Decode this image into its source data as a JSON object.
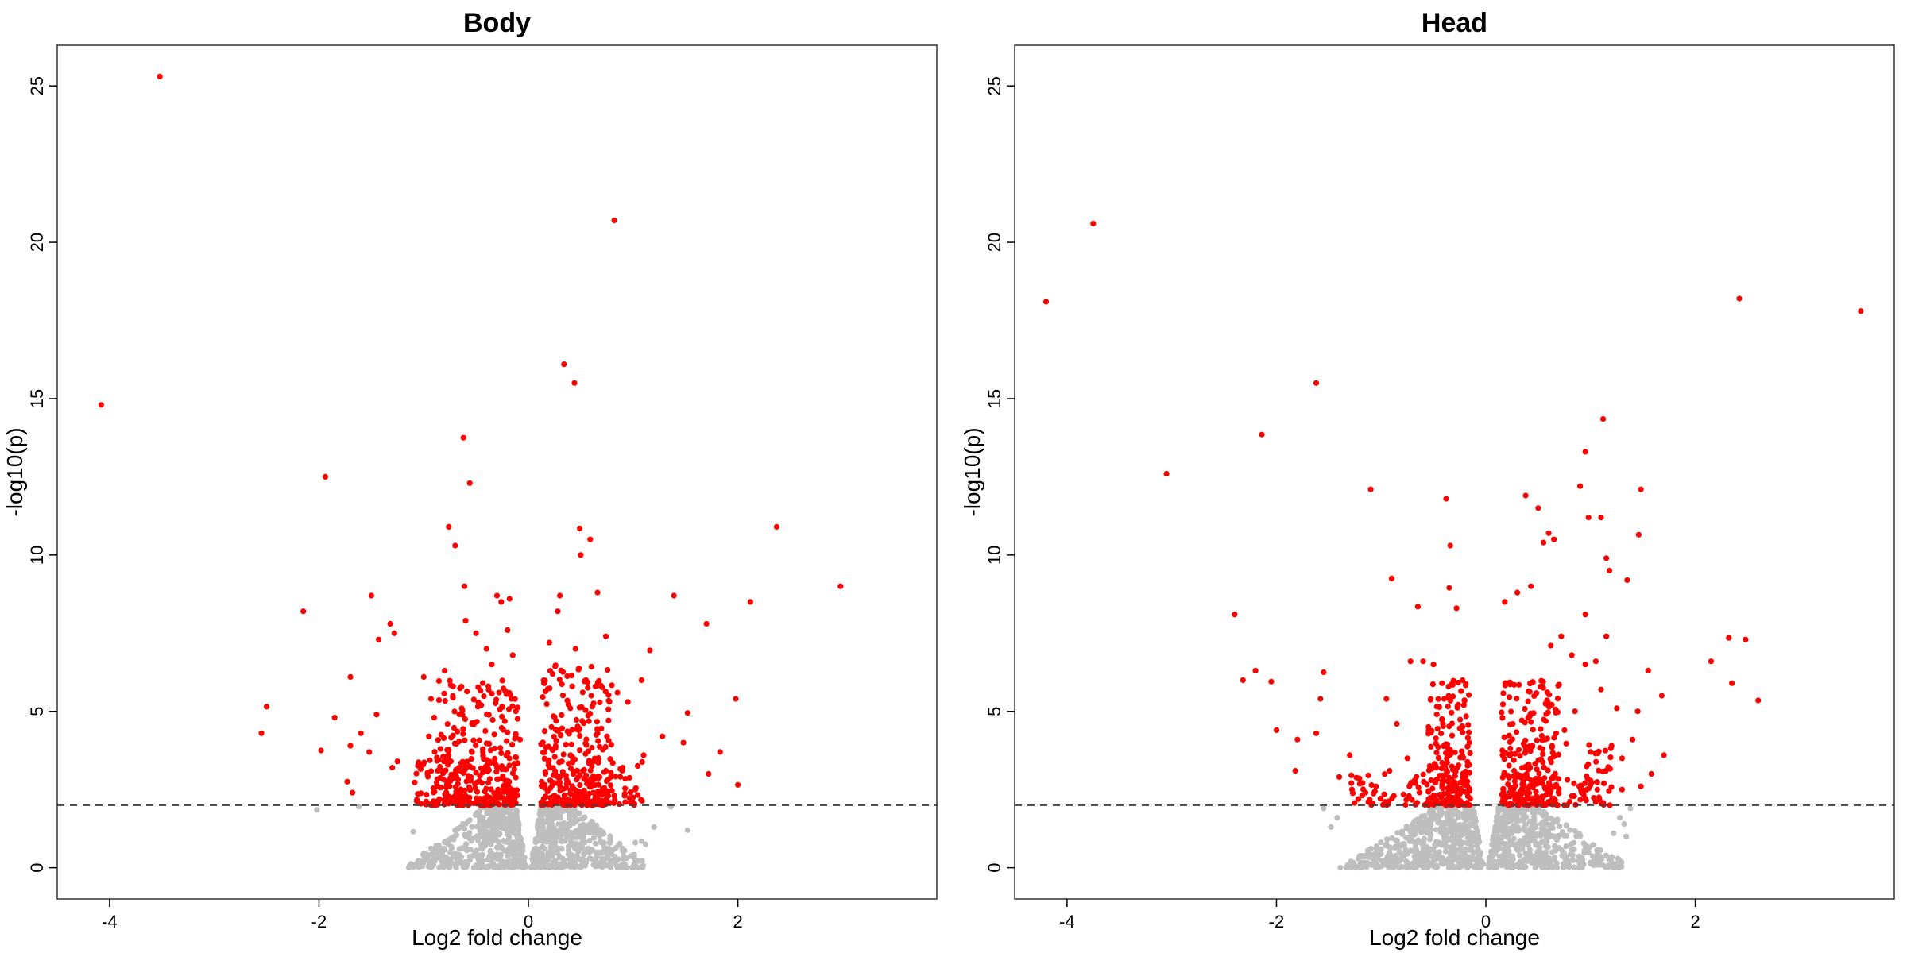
{
  "colors": {
    "significant": "#ff0000",
    "non_significant": "#bebebe",
    "threshold": "#444444",
    "frame": "#333333"
  },
  "chart_data": [
    {
      "type": "scatter",
      "title": "Body",
      "xlabel": "Log2 fold change",
      "ylabel": "-log10(p)",
      "xlim": [
        -4.5,
        3.9
      ],
      "ylim": [
        -1.0,
        26.3
      ],
      "xticks": [
        -4,
        -2,
        0,
        2
      ],
      "xtick_labels": [
        "-4",
        "-2",
        "0",
        "2"
      ],
      "yticks": [
        0,
        5,
        10,
        15,
        20,
        25
      ],
      "ytick_labels": [
        "0",
        "5",
        "10",
        "15",
        "20",
        "25"
      ],
      "threshold": 2,
      "grid": false,
      "significant_points": [
        [
          -3.52,
          25.3
        ],
        [
          -4.08,
          14.8
        ],
        [
          0.82,
          20.7
        ],
        [
          0.34,
          16.1
        ],
        [
          0.44,
          15.5
        ],
        [
          -0.62,
          13.75
        ],
        [
          -1.94,
          12.5
        ],
        [
          -0.56,
          12.3
        ],
        [
          -0.76,
          10.9
        ],
        [
          -0.7,
          10.3
        ],
        [
          0.49,
          10.85
        ],
        [
          0.59,
          10.5
        ],
        [
          0.5,
          10.0
        ],
        [
          2.37,
          10.9
        ],
        [
          2.98,
          9.0
        ],
        [
          -0.61,
          9.0
        ],
        [
          -0.3,
          8.7
        ],
        [
          -0.18,
          8.6
        ],
        [
          -0.26,
          8.5
        ],
        [
          -1.5,
          8.7
        ],
        [
          -2.15,
          8.2
        ],
        [
          1.39,
          8.7
        ],
        [
          2.12,
          8.5
        ],
        [
          1.7,
          7.8
        ],
        [
          0.3,
          8.7
        ],
        [
          0.66,
          8.8
        ],
        [
          0.28,
          8.2
        ],
        [
          0.74,
          7.4
        ],
        [
          -1.32,
          7.8
        ],
        [
          -1.28,
          7.5
        ],
        [
          -1.43,
          7.3
        ],
        [
          1.16,
          6.95
        ],
        [
          -1.7,
          6.1
        ],
        [
          -2.5,
          5.15
        ],
        [
          -2.55,
          4.3
        ],
        [
          -1.85,
          4.8
        ],
        [
          -1.6,
          4.3
        ],
        [
          -1.45,
          4.9
        ],
        [
          -1.98,
          3.75
        ],
        [
          -1.52,
          3.7
        ],
        [
          -1.7,
          3.9
        ],
        [
          -1.73,
          2.75
        ],
        [
          -1.68,
          2.4
        ],
        [
          -1.25,
          3.4
        ],
        [
          -1.3,
          3.2
        ],
        [
          1.98,
          5.4
        ],
        [
          1.52,
          4.95
        ],
        [
          2.0,
          2.65
        ],
        [
          1.83,
          3.7
        ],
        [
          1.72,
          3.0
        ],
        [
          1.28,
          4.2
        ],
        [
          1.48,
          4.0
        ],
        [
          1.08,
          6.0
        ],
        [
          0.95,
          5.3
        ],
        [
          1.1,
          3.6
        ],
        [
          -1.0,
          6.1
        ],
        [
          -0.93,
          5.4
        ],
        [
          -0.9,
          4.8
        ],
        [
          -0.95,
          4.2
        ],
        [
          -1.05,
          3.3
        ],
        [
          -0.8,
          6.3
        ],
        [
          -0.72,
          5.8
        ],
        [
          -0.5,
          7.5
        ],
        [
          -0.6,
          7.9
        ],
        [
          -0.4,
          7.0
        ],
        [
          -0.35,
          6.5
        ],
        [
          -0.2,
          7.6
        ],
        [
          -0.15,
          6.8
        ],
        [
          0.2,
          7.2
        ],
        [
          0.45,
          7.0
        ],
        [
          0.55,
          6.0
        ],
        [
          0.6,
          5.5
        ],
        [
          0.85,
          5.6
        ],
        [
          0.75,
          4.2
        ],
        [
          0.9,
          3.2
        ],
        [
          1.02,
          2.5
        ],
        [
          -0.78,
          2.6
        ],
        [
          -0.65,
          3.1
        ],
        [
          -0.84,
          3.8
        ],
        [
          -0.54,
          4.6
        ],
        [
          -0.45,
          5.2
        ],
        [
          -0.28,
          5.6
        ],
        [
          -0.12,
          5.0
        ],
        [
          -0.08,
          4.1
        ],
        [
          0.15,
          5.9
        ],
        [
          0.22,
          4.5
        ],
        [
          0.26,
          3.9
        ],
        [
          0.32,
          3.4
        ],
        [
          0.4,
          5.1
        ],
        [
          0.48,
          4.4
        ],
        [
          0.52,
          3.1
        ],
        [
          0.68,
          2.9
        ],
        [
          0.62,
          2.4
        ]
      ],
      "dense_clusters": [
        {
          "x": [
            -0.9,
            -0.1
          ],
          "y": [
            2.0,
            6.0
          ],
          "n": 260
        },
        {
          "x": [
            0.12,
            0.8
          ],
          "y": [
            2.0,
            6.5
          ],
          "n": 240
        },
        {
          "x": [
            -1.1,
            -0.12
          ],
          "y": [
            2.0,
            3.5
          ],
          "n": 120
        },
        {
          "x": [
            0.12,
            1.1
          ],
          "y": [
            2.0,
            3.5
          ],
          "n": 110
        }
      ],
      "nonsignificant_clusters": [
        {
          "x": [
            -1.2,
            1.1
          ],
          "y": [
            0.0,
            2.0
          ],
          "n": 1000,
          "vshape": true
        }
      ],
      "nonsignificant_points": [
        [
          -2.02,
          1.85
        ],
        [
          -1.62,
          1.95
        ],
        [
          -1.1,
          1.15
        ],
        [
          -1.0,
          0.45
        ],
        [
          1.02,
          0.8
        ],
        [
          1.08,
          0.85
        ],
        [
          1.12,
          0.75
        ],
        [
          1.52,
          1.2
        ],
        [
          1.36,
          1.95
        ],
        [
          1.2,
          1.3
        ]
      ]
    },
    {
      "type": "scatter",
      "title": "Head",
      "xlabel": "Log2 fold change",
      "ylabel": "-log10(p)",
      "xlim": [
        -4.5,
        3.9
      ],
      "ylim": [
        -1.0,
        26.3
      ],
      "xticks": [
        -4,
        -2,
        0,
        2
      ],
      "xtick_labels": [
        "-4",
        "-2",
        "0",
        "2"
      ],
      "yticks": [
        0,
        5,
        10,
        15,
        20,
        25
      ],
      "ytick_labels": [
        "0",
        "5",
        "10",
        "15",
        "20",
        "25"
      ],
      "threshold": 2,
      "grid": false,
      "significant_points": [
        [
          -3.75,
          20.6
        ],
        [
          -4.2,
          18.1
        ],
        [
          2.42,
          18.2
        ],
        [
          3.58,
          17.8
        ],
        [
          -1.62,
          15.5
        ],
        [
          -2.14,
          13.85
        ],
        [
          -3.05,
          12.6
        ],
        [
          1.12,
          14.35
        ],
        [
          -1.1,
          12.1
        ],
        [
          0.95,
          13.3
        ],
        [
          1.48,
          12.1
        ],
        [
          0.9,
          12.2
        ],
        [
          0.98,
          11.2
        ],
        [
          1.1,
          11.2
        ],
        [
          -0.38,
          11.8
        ],
        [
          0.38,
          11.9
        ],
        [
          0.5,
          11.5
        ],
        [
          0.6,
          10.7
        ],
        [
          0.55,
          10.4
        ],
        [
          1.46,
          10.65
        ],
        [
          -0.34,
          10.3
        ],
        [
          0.65,
          10.5
        ],
        [
          1.15,
          9.9
        ],
        [
          1.18,
          9.5
        ],
        [
          1.35,
          9.2
        ],
        [
          -0.9,
          9.25
        ],
        [
          -0.35,
          8.95
        ],
        [
          0.3,
          8.8
        ],
        [
          0.43,
          9.0
        ],
        [
          -0.28,
          8.3
        ],
        [
          -0.65,
          8.35
        ],
        [
          0.18,
          8.5
        ],
        [
          -2.4,
          8.1
        ],
        [
          0.95,
          8.1
        ],
        [
          1.15,
          7.4
        ],
        [
          2.32,
          7.35
        ],
        [
          2.48,
          7.3
        ],
        [
          2.15,
          6.6
        ],
        [
          2.6,
          5.35
        ],
        [
          2.35,
          5.9
        ],
        [
          1.55,
          6.3
        ],
        [
          1.68,
          5.5
        ],
        [
          1.45,
          5.0
        ],
        [
          1.4,
          4.1
        ],
        [
          1.7,
          3.6
        ],
        [
          1.58,
          3.0
        ],
        [
          -2.32,
          6.0
        ],
        [
          -2.05,
          5.95
        ],
        [
          -2.2,
          6.3
        ],
        [
          -1.55,
          6.25
        ],
        [
          -1.58,
          5.4
        ],
        [
          -2.0,
          4.4
        ],
        [
          -1.8,
          4.1
        ],
        [
          -1.82,
          3.1
        ],
        [
          -1.62,
          4.3
        ],
        [
          -1.3,
          3.6
        ],
        [
          -1.4,
          2.9
        ],
        [
          -1.15,
          2.4
        ],
        [
          -0.95,
          5.4
        ],
        [
          -0.85,
          4.6
        ],
        [
          -0.72,
          6.6
        ],
        [
          -0.6,
          6.6
        ],
        [
          -0.5,
          6.5
        ],
        [
          -0.42,
          5.9
        ],
        [
          0.62,
          7.1
        ],
        [
          0.72,
          7.4
        ],
        [
          0.82,
          6.8
        ],
        [
          0.95,
          6.5
        ],
        [
          1.05,
          6.6
        ],
        [
          1.1,
          5.7
        ],
        [
          1.25,
          5.1
        ],
        [
          0.85,
          5.0
        ],
        [
          0.75,
          4.4
        ],
        [
          1.0,
          3.7
        ],
        [
          1.2,
          3.9
        ],
        [
          1.3,
          3.5
        ],
        [
          -0.75,
          3.5
        ],
        [
          -0.68,
          2.8
        ],
        [
          -0.92,
          3.1
        ],
        [
          -1.05,
          2.6
        ],
        [
          1.3,
          2.5
        ],
        [
          1.48,
          2.6
        ]
      ],
      "dense_clusters": [
        {
          "x": [
            -0.55,
            -0.15
          ],
          "y": [
            2.0,
            6.0
          ],
          "n": 200
        },
        {
          "x": [
            0.15,
            0.7
          ],
          "y": [
            2.0,
            6.0
          ],
          "n": 220
        },
        {
          "x": [
            0.15,
            1.2
          ],
          "y": [
            2.0,
            4.0
          ],
          "n": 120
        },
        {
          "x": [
            -1.3,
            -0.2
          ],
          "y": [
            2.0,
            3.0
          ],
          "n": 80
        }
      ],
      "nonsignificant_clusters": [
        {
          "x": [
            -1.5,
            1.3
          ],
          "y": [
            0.0,
            2.0
          ],
          "n": 1100,
          "vshape": true
        }
      ],
      "nonsignificant_points": [
        [
          -1.55,
          1.9
        ],
        [
          -1.48,
          1.3
        ],
        [
          -1.42,
          1.6
        ],
        [
          1.28,
          1.6
        ],
        [
          1.32,
          1.4
        ],
        [
          1.38,
          1.9
        ],
        [
          1.22,
          1.1
        ],
        [
          1.34,
          1.0
        ]
      ]
    }
  ]
}
